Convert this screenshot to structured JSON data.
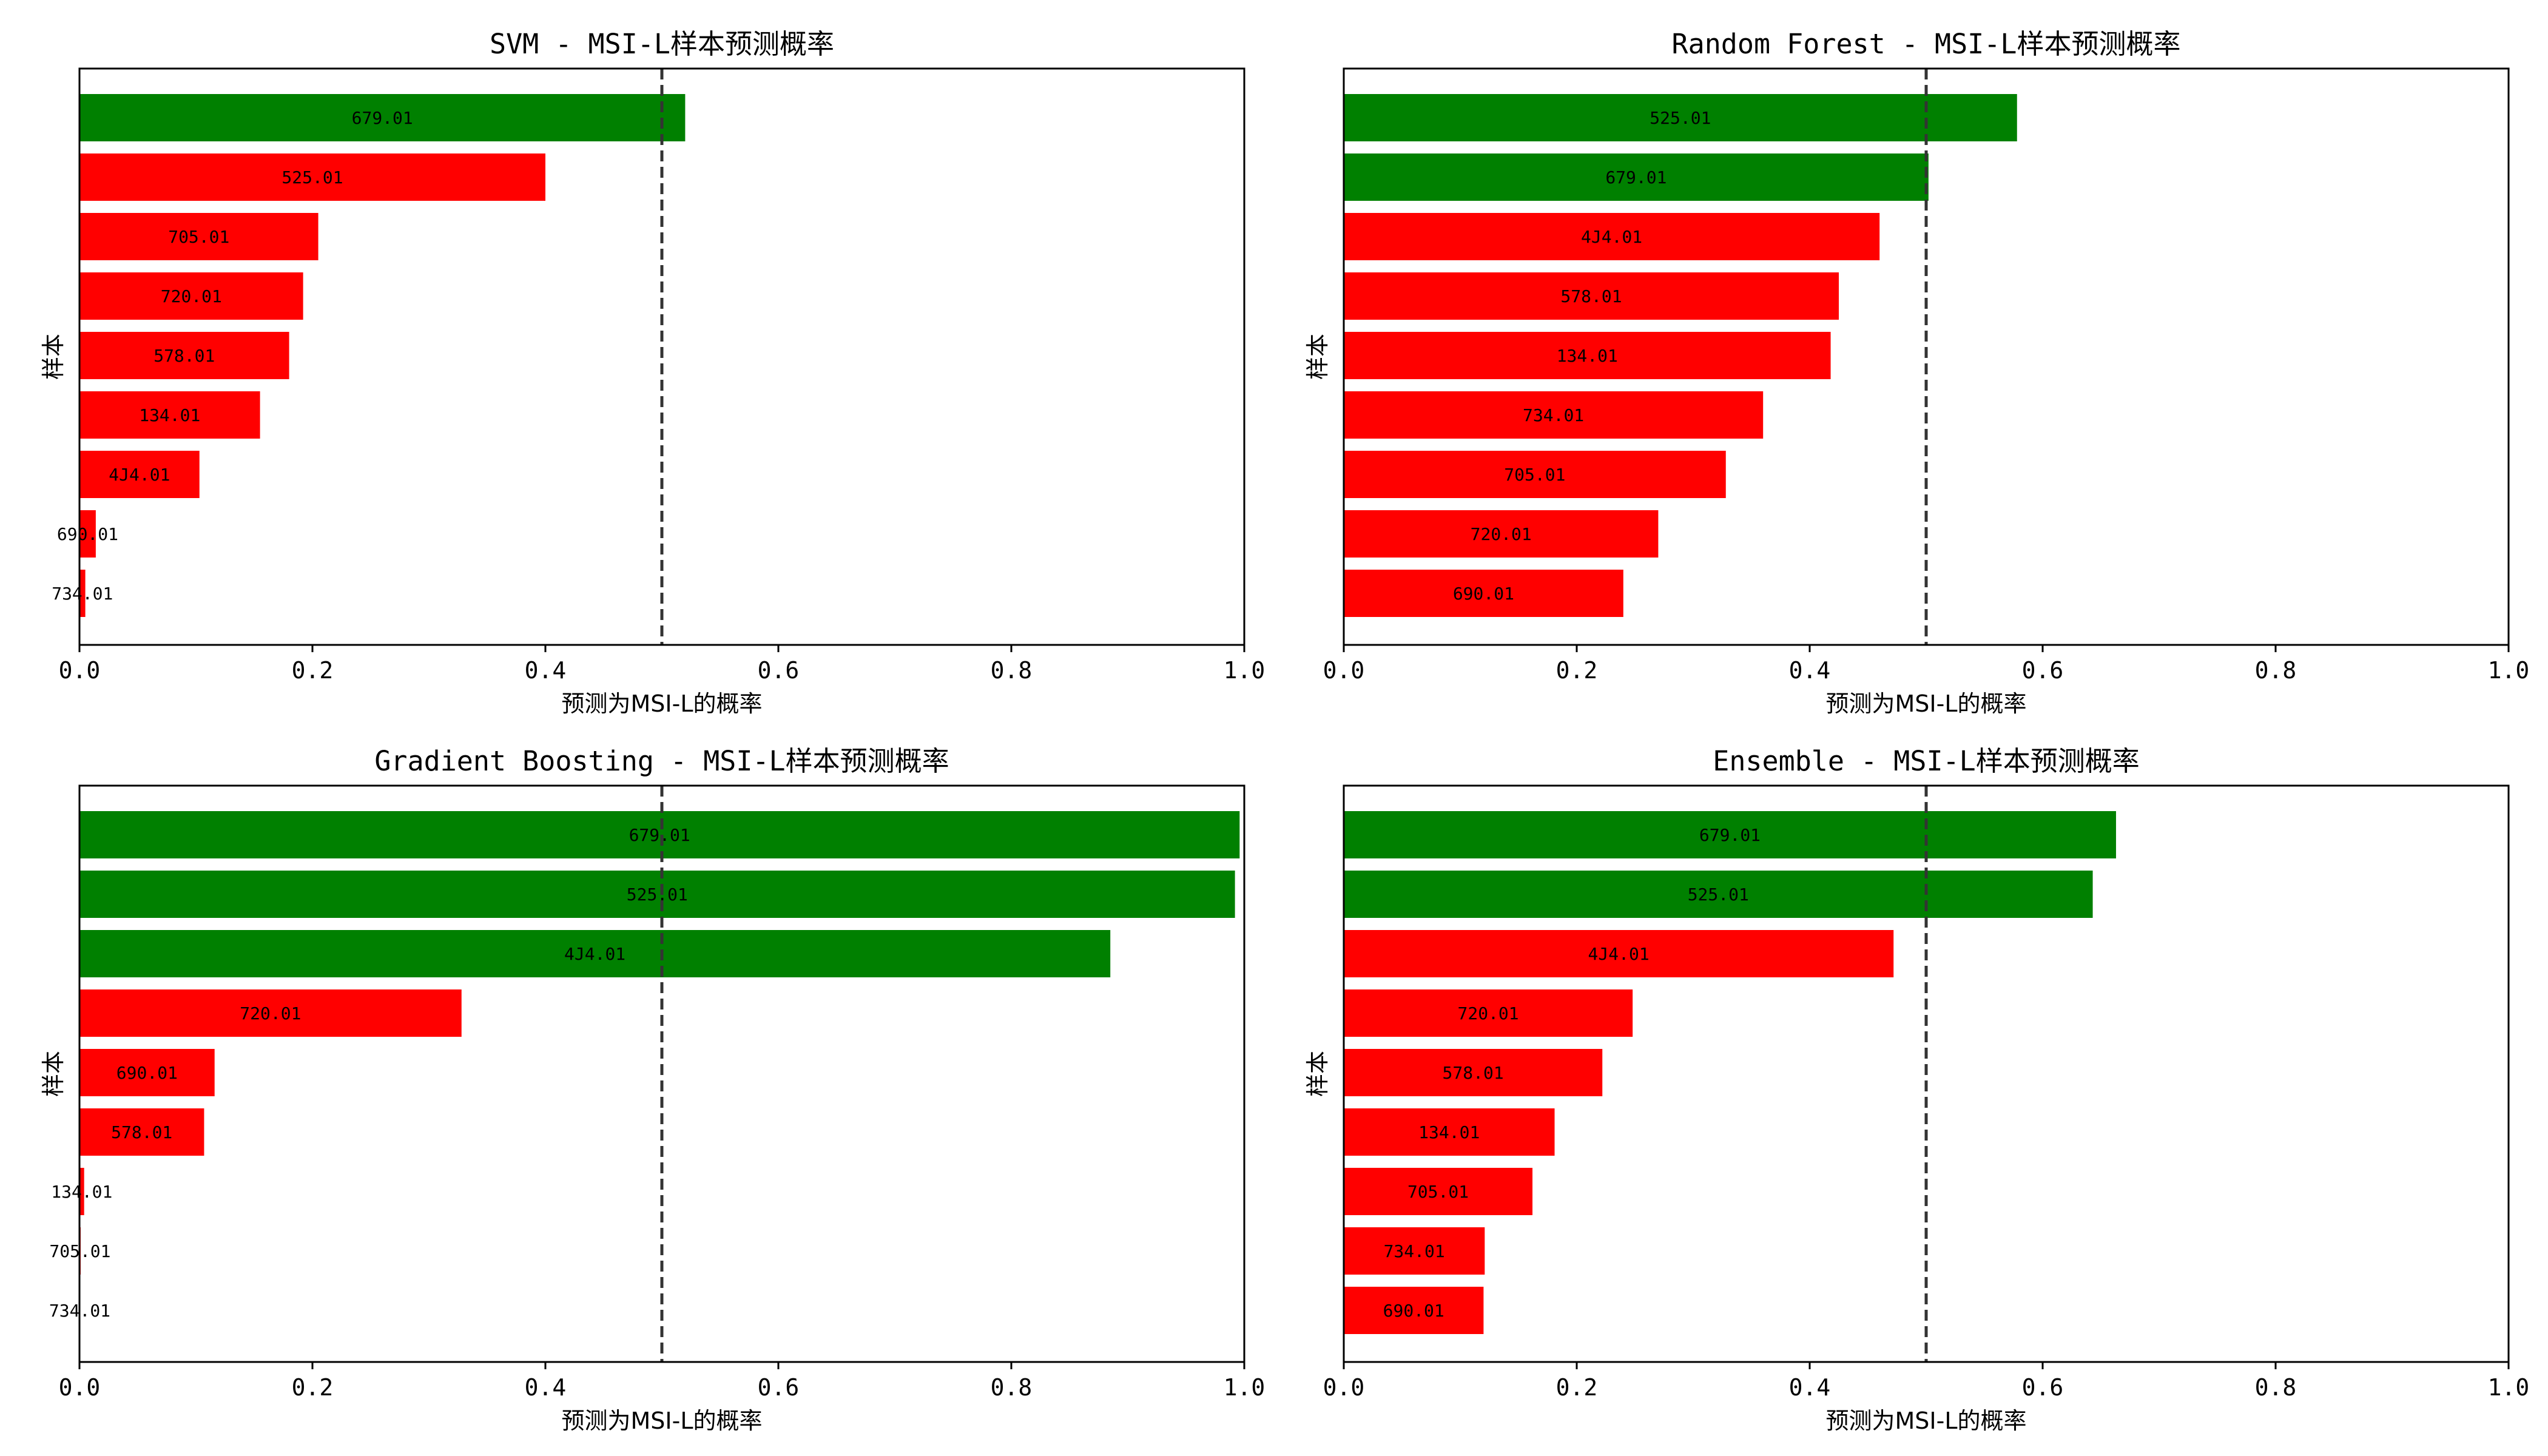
{
  "colors": {
    "above_threshold": "#008000",
    "below_threshold": "#ff0000",
    "threshold_line": "#333333"
  },
  "chart_data": [
    {
      "type": "bar",
      "orientation": "horizontal",
      "title": "SVM - MSI-L样本预测概率",
      "xlabel": "预测为MSI-L的概率",
      "ylabel": "样本",
      "xlim": [
        0,
        1.0
      ],
      "xticks": [
        "0.0",
        "0.2",
        "0.4",
        "0.6",
        "0.8",
        "1.0"
      ],
      "threshold": 0.5,
      "categories": [
        "679.01",
        "525.01",
        "705.01",
        "720.01",
        "578.01",
        "134.01",
        "4J4.01",
        "690.01",
        "734.01"
      ],
      "values": [
        0.52,
        0.4,
        0.205,
        0.192,
        0.18,
        0.155,
        0.103,
        0.014,
        0.005
      ]
    },
    {
      "type": "bar",
      "orientation": "horizontal",
      "title": "Random Forest - MSI-L样本预测概率",
      "xlabel": "预测为MSI-L的概率",
      "ylabel": "样本",
      "xlim": [
        0,
        1.0
      ],
      "xticks": [
        "0.0",
        "0.2",
        "0.4",
        "0.6",
        "0.8",
        "1.0"
      ],
      "threshold": 0.5,
      "categories": [
        "525.01",
        "679.01",
        "4J4.01",
        "578.01",
        "134.01",
        "734.01",
        "705.01",
        "720.01",
        "690.01"
      ],
      "values": [
        0.578,
        0.502,
        0.46,
        0.425,
        0.418,
        0.36,
        0.328,
        0.27,
        0.24
      ]
    },
    {
      "type": "bar",
      "orientation": "horizontal",
      "title": "Gradient Boosting - MSI-L样本预测概率",
      "xlabel": "预测为MSI-L的概率",
      "ylabel": "样本",
      "xlim": [
        0,
        1.0
      ],
      "xticks": [
        "0.0",
        "0.2",
        "0.4",
        "0.6",
        "0.8",
        "1.0"
      ],
      "threshold": 0.5,
      "categories": [
        "679.01",
        "525.01",
        "4J4.01",
        "720.01",
        "690.01",
        "578.01",
        "134.01",
        "705.01",
        "734.01"
      ],
      "values": [
        0.996,
        0.992,
        0.885,
        0.328,
        0.116,
        0.107,
        0.004,
        0.001,
        0.0005
      ]
    },
    {
      "type": "bar",
      "orientation": "horizontal",
      "title": "Ensemble - MSI-L样本预测概率",
      "xlabel": "预测为MSI-L的概率",
      "ylabel": "样本",
      "xlim": [
        0,
        1.0
      ],
      "xticks": [
        "0.0",
        "0.2",
        "0.4",
        "0.6",
        "0.8",
        "1.0"
      ],
      "threshold": 0.5,
      "categories": [
        "679.01",
        "525.01",
        "4J4.01",
        "720.01",
        "578.01",
        "134.01",
        "705.01",
        "734.01",
        "690.01"
      ],
      "values": [
        0.663,
        0.643,
        0.472,
        0.248,
        0.222,
        0.181,
        0.162,
        0.121,
        0.12
      ]
    }
  ]
}
